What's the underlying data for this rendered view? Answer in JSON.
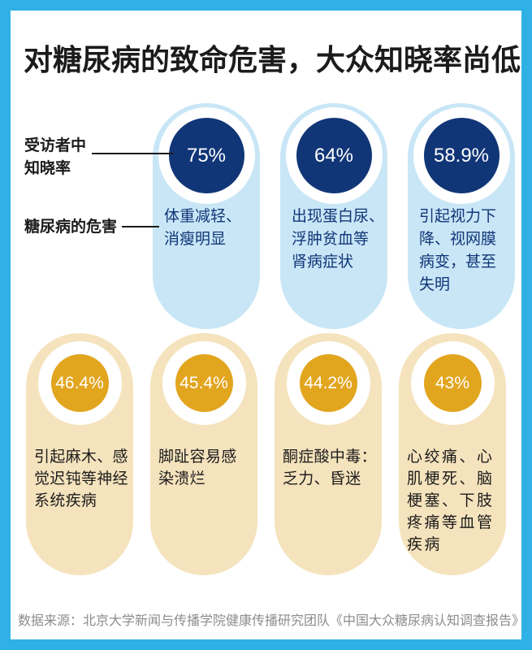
{
  "title": "对糖尿病的致命危害，大众知晓率尚低",
  "labels": {
    "awareness": "受访者中\n知晓率",
    "harm": "糖尿病的危害"
  },
  "top_row": {
    "pills": [
      {
        "percent": "75%",
        "description": "体重减轻、\n消瘦明显"
      },
      {
        "percent": "64%",
        "description": "出现蛋白尿、\n浮肿贫血等\n肾病症状"
      },
      {
        "percent": "58.9%",
        "description": "引起视力下\n降、视网膜\n病变，甚至\n失明"
      }
    ]
  },
  "bottom_row": {
    "pills": [
      {
        "percent": "46.4%",
        "description": "引起麻木、感\n觉迟钝等神经\n系统疾病"
      },
      {
        "percent": "45.4%",
        "description": "脚趾容易感\n染溃烂"
      },
      {
        "percent": "44.2%",
        "description": "酮症酸中毒：\n乏力、昏迷"
      },
      {
        "percent": "43%",
        "description": "心绞痛、心\n肌梗死、脑\n梗塞、下肢\n疼痛等血管\n疾病"
      }
    ]
  },
  "footer": {
    "source": "数据来源：北京大学新闻与传播学院健康传播研究团队《中国大众糖尿病认知调查报告》"
  },
  "colors": {
    "frame_blue": "#2fb1e5",
    "navy": "#113677",
    "light_blue_pill": "#c8e6f6",
    "cream_pill": "#f5e3bd",
    "amber": "#e2a51e",
    "title_black": "#1b1b1b",
    "footer_gray": "#8c8c8c"
  },
  "chart_data": {
    "type": "bar",
    "title": "对糖尿病的致命危害，大众知晓率尚低",
    "series_label": "受访者中知晓率",
    "categories": [
      "体重减轻、消瘦明显",
      "出现蛋白尿、浮肿贫血等肾病症状",
      "引起视力下降、视网膜病变，甚至失明",
      "引起麻木、感觉迟钝等神经系统疾病",
      "脚趾容易感染溃烂",
      "酮症酸中毒：乏力、昏迷",
      "心绞痛、心肌梗死、脑梗塞、下肢疼痛等血管疾病"
    ],
    "values": [
      75,
      64,
      58.9,
      46.4,
      45.4,
      44.2,
      43
    ],
    "unit": "%",
    "group_labels": [
      "糖尿病的危害"
    ],
    "source": "数据来源：北京大学新闻与传播学院健康传播研究团队《中国大众糖尿病认知调查报告》"
  }
}
